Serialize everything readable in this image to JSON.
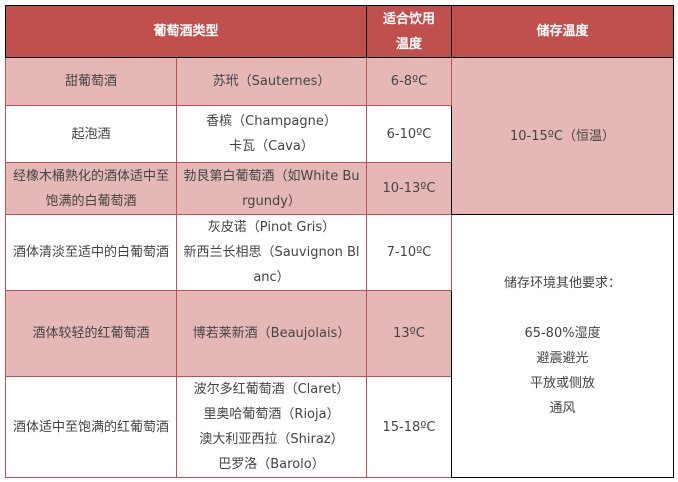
{
  "header": {
    "type": "葡萄酒类型",
    "drink_temp": "适合饮用温度",
    "storage_temp": "储存温度"
  },
  "rows": [
    {
      "type": "甜葡萄酒",
      "examples": [
        "苏玳（Sauternes）"
      ],
      "temp": "6-8ºC",
      "pink": true
    },
    {
      "type": "起泡酒",
      "examples": [
        "香槟（Champagne）",
        "卡瓦（Cava）"
      ],
      "temp": "6-10ºC",
      "pink": false
    },
    {
      "type": "经橡木桶熟化的酒体适中至饱满的白葡萄酒",
      "examples": [
        "勃艮第白葡萄酒（如White Burgundy）"
      ],
      "temp": "10-13ºC",
      "pink": true
    },
    {
      "type": "酒体清淡至适中的白葡萄酒",
      "examples": [
        "灰皮诺（Pinot Gris）",
        "新西兰长相思（Sauvignon Blanc）"
      ],
      "temp": "7-10ºC",
      "pink": false
    },
    {
      "type": "酒体较轻的红葡萄酒",
      "examples": [
        "博若莱新酒（Beaujolais）"
      ],
      "temp": "13ºC",
      "pink": true
    },
    {
      "type": "酒体适中至饱满的红葡萄酒",
      "examples": [
        "波尔多红葡萄酒（Claret）",
        "里奥哈葡萄酒（Rioja）",
        "澳大利亚西拉（Shiraz）",
        "巴罗洛（Barolo）"
      ],
      "temp": "15-18ºC",
      "pink": false
    }
  ],
  "storage": {
    "temp": "10-15ºC（恒温）",
    "other_title": "储存环境其他要求：",
    "other_items": [
      "65-80%湿度",
      "避震避光",
      "平放或侧放",
      "通风"
    ]
  },
  "colors": {
    "header": "#c0504d",
    "pink_row": "#e5b8b7",
    "border": "#c0504d"
  }
}
